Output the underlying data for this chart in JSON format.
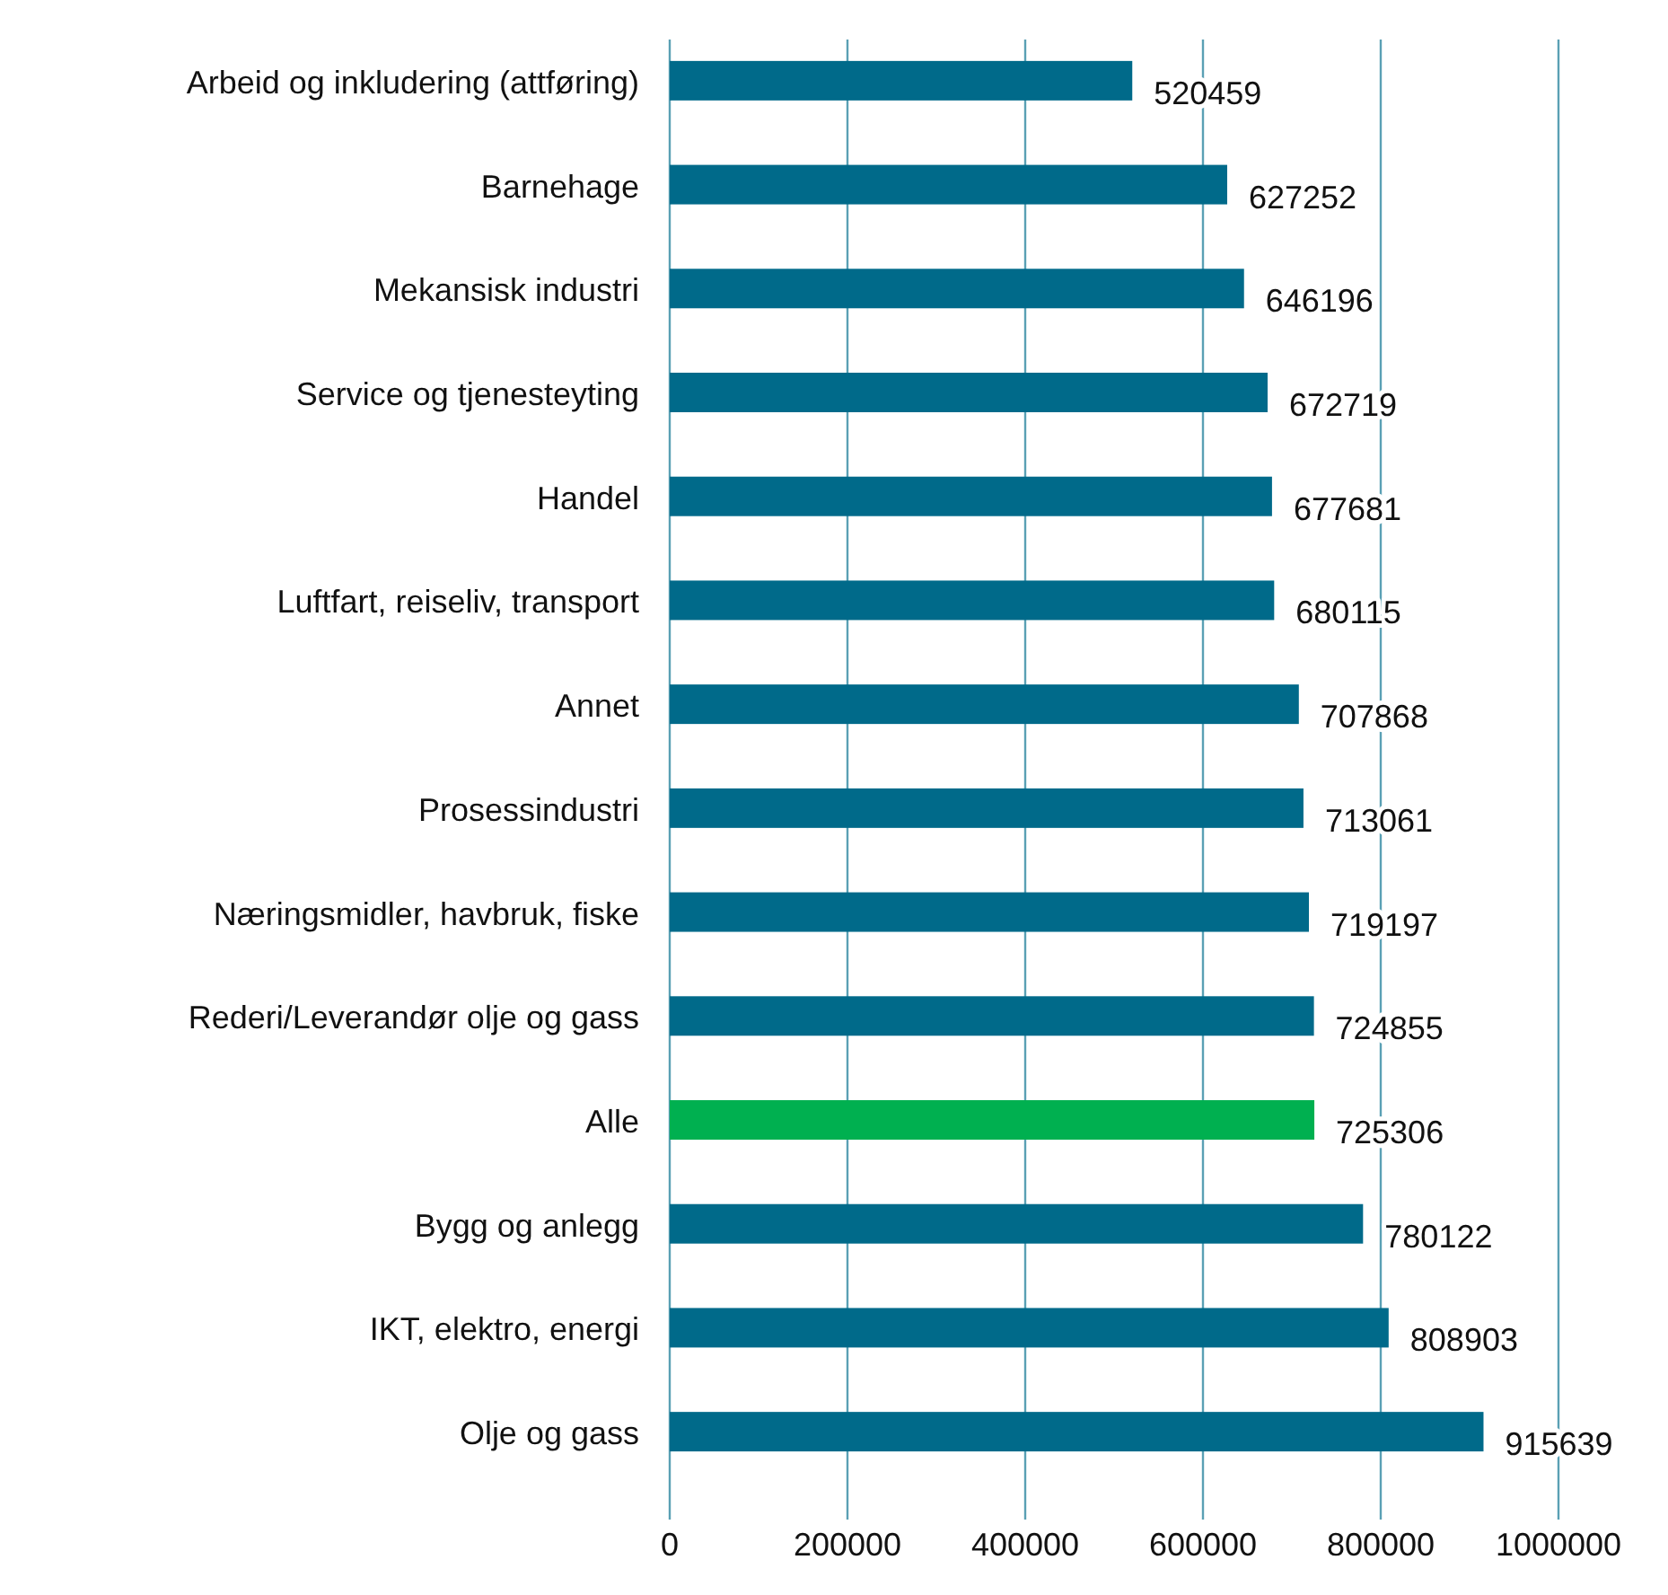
{
  "chart_data": {
    "type": "bar",
    "orientation": "horizontal",
    "categories": [
      "Arbeid og inkludering (attføring)",
      "Barnehage",
      "Mekansisk industri",
      "Service og tjenesteyting",
      "Handel",
      "Luftfart, reiseliv, transport",
      "Annet",
      "Prosessindustri",
      "Næringsmidler, havbruk, fiske",
      "Rederi/Leverandør olje og gass",
      "Alle",
      "Bygg og anlegg",
      "IKT, elektro, energi",
      "Olje og gass"
    ],
    "values": [
      520459,
      627252,
      646196,
      672719,
      677681,
      680115,
      707868,
      713061,
      719197,
      724855,
      725306,
      780122,
      808903,
      915639
    ],
    "colors": [
      "#006a8a",
      "#006a8a",
      "#006a8a",
      "#006a8a",
      "#006a8a",
      "#006a8a",
      "#006a8a",
      "#006a8a",
      "#006a8a",
      "#006a8a",
      "#00b050",
      "#006a8a",
      "#006a8a",
      "#006a8a"
    ],
    "xlim": [
      0,
      1000000
    ],
    "xticks": [
      0,
      200000,
      400000,
      600000,
      800000,
      1000000
    ],
    "grid": "x",
    "data_labels": true
  }
}
